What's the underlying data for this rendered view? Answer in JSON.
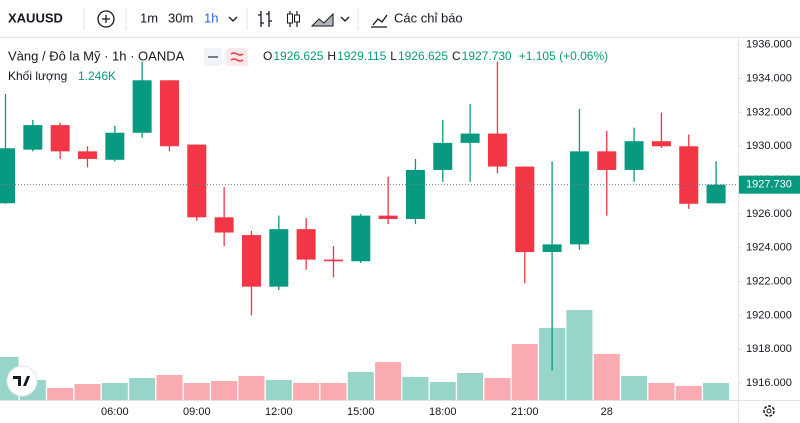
{
  "header": {
    "symbol": "XAUUSD",
    "intervals": [
      "1m",
      "30m",
      "1h"
    ],
    "indicators": "Các chỉ báo",
    "instrument": "Vàng / Đô la Mỹ · 1h · OANDA",
    "ohlc": [
      {
        "key": "O",
        "value": "1926.625"
      },
      {
        "key": "H",
        "value": "1929.115"
      },
      {
        "key": "L",
        "value": "1926.625"
      },
      {
        "key": "C",
        "value": "1927.730"
      }
    ],
    "change": "+1.105 (+0.06%)",
    "volume_label": "Khối lượng",
    "volume_value": "1.246K"
  },
  "chart_data": {
    "type": "candlestick",
    "up_color": "#089981",
    "down_color": "#f23645",
    "grid": false,
    "categories": [
      null,
      null,
      null,
      null,
      "06:00",
      null,
      null,
      "09:00",
      null,
      null,
      "12:00",
      null,
      null,
      "15:00",
      null,
      null,
      "18:00",
      null,
      null,
      "21:00",
      null,
      null,
      "28",
      null,
      null,
      null,
      null
    ],
    "open": [
      1926.63,
      1929.8,
      1931.25,
      1929.7,
      1929.2,
      1930.8,
      1933.9,
      1930.1,
      1925.8,
      1924.75,
      1921.7,
      1925.1,
      1923.3,
      1923.2,
      1925.9,
      1925.7,
      1928.6,
      1930.2,
      1930.75,
      1928.8,
      1923.75,
      1924.2,
      1929.7,
      1928.6,
      1930.3,
      1930.0,
      1926.625
    ],
    "high": [
      1933.1,
      1931.56,
      1931.4,
      1930.0,
      1931.2,
      1935.0,
      1933.9,
      1930.1,
      1927.6,
      1925.0,
      1925.9,
      1925.75,
      1924.1,
      1926.0,
      1928.2,
      1929.25,
      1931.56,
      1932.5,
      1935.0,
      1928.8,
      1929.1,
      1932.2,
      1930.9,
      1931.1,
      1932.0,
      1930.7,
      1929.115
    ],
    "low": [
      1926.6,
      1929.7,
      1929.25,
      1928.75,
      1929.1,
      1930.5,
      1929.7,
      1925.6,
      1924.1,
      1920.0,
      1921.5,
      1922.7,
      1922.25,
      1923.1,
      1925.4,
      1925.4,
      1927.9,
      1927.9,
      1928.4,
      1921.9,
      1916.75,
      1923.9,
      1925.9,
      1927.9,
      1929.9,
      1926.3,
      1926.625
    ],
    "close": [
      1929.88,
      1931.25,
      1929.7,
      1929.25,
      1930.8,
      1933.9,
      1930.0,
      1925.8,
      1924.9,
      1921.7,
      1925.1,
      1923.3,
      1923.2,
      1925.9,
      1925.7,
      1928.6,
      1930.2,
      1930.75,
      1928.8,
      1923.75,
      1924.2,
      1929.7,
      1928.6,
      1930.3,
      1930.0,
      1926.6,
      1927.73
    ],
    "volume": [
      3150,
      1470,
      880,
      1170,
      1250,
      1610,
      1830,
      1250,
      1390,
      1760,
      1470,
      1250,
      1250,
      2050,
      2780,
      1690,
      1320,
      1980,
      1610,
      4100,
      5280,
      6590,
      3370,
      1760,
      1250,
      1030,
      1246
    ],
    "ylim": [
      1915,
      1936.4
    ],
    "yticks": [
      {
        "value": 1916,
        "label": "1916.000"
      },
      {
        "value": 1918,
        "label": "1918.000"
      },
      {
        "value": 1920,
        "label": "1920.000"
      },
      {
        "value": 1922,
        "label": "1922.000"
      },
      {
        "value": 1924,
        "label": "1924.000"
      },
      {
        "value": 1926,
        "label": "1926.000"
      },
      {
        "value": 1928,
        "label": "1928.000"
      },
      {
        "value": 1930,
        "label": "1930.000"
      },
      {
        "value": 1932,
        "label": "1932.000"
      },
      {
        "value": 1934,
        "label": "1934.000"
      },
      {
        "value": 1936,
        "label": "1936.000"
      }
    ]
  }
}
